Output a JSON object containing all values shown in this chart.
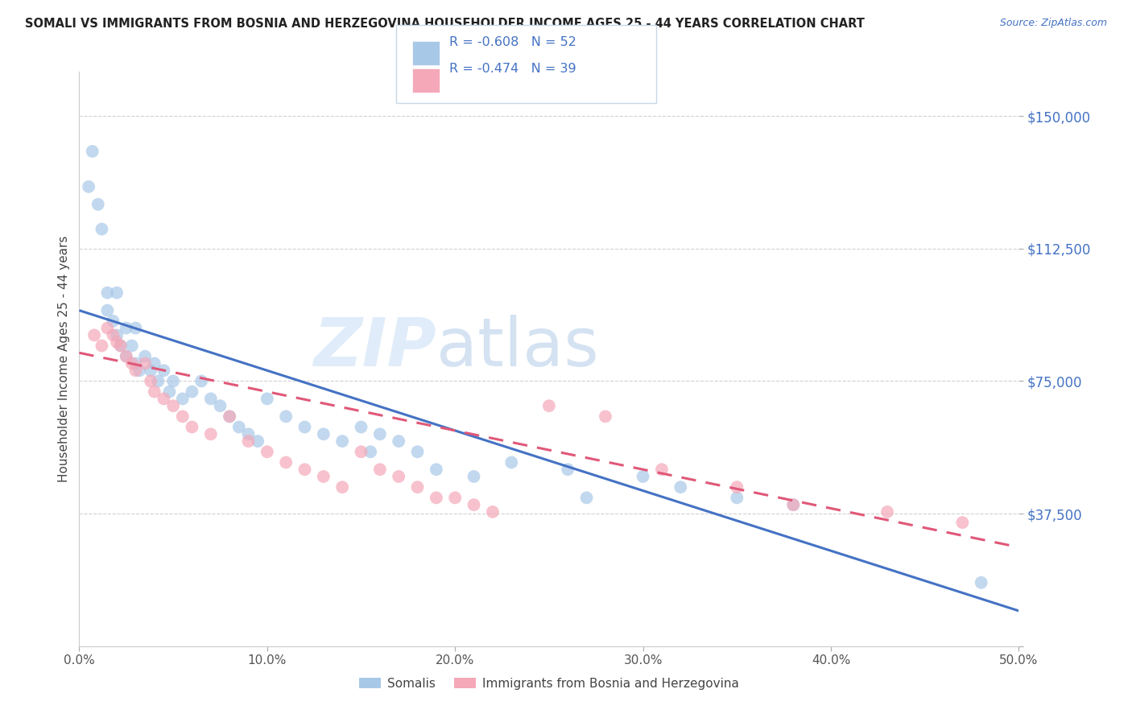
{
  "title": "SOMALI VS IMMIGRANTS FROM BOSNIA AND HERZEGOVINA HOUSEHOLDER INCOME AGES 25 - 44 YEARS CORRELATION CHART",
  "source": "Source: ZipAtlas.com",
  "ylabel": "Householder Income Ages 25 - 44 years",
  "xlabel_ticks": [
    "0.0%",
    "10.0%",
    "20.0%",
    "30.0%",
    "40.0%",
    "50.0%"
  ],
  "xlabel_vals": [
    0.0,
    0.1,
    0.2,
    0.3,
    0.4,
    0.5
  ],
  "ytick_vals": [
    0,
    37500,
    75000,
    112500,
    150000
  ],
  "ytick_labels": [
    "",
    "$37,500",
    "$75,000",
    "$112,500",
    "$150,000"
  ],
  "xlim": [
    0.0,
    0.5
  ],
  "ylim": [
    0,
    162500
  ],
  "r_somali": -0.608,
  "n_somali": 52,
  "r_bosnia": -0.474,
  "n_bosnia": 39,
  "color_somali": "#a8c8e8",
  "color_bosnia": "#f4a8b8",
  "color_somali_line": "#4472c4",
  "color_bosnia_line": "#e05878",
  "somali_line_y0": 95000,
  "somali_line_y1": 10000,
  "bosnia_line_y0": 83000,
  "bosnia_line_y1": 28000,
  "somali_x": [
    0.005,
    0.007,
    0.01,
    0.012,
    0.015,
    0.015,
    0.018,
    0.02,
    0.02,
    0.022,
    0.025,
    0.025,
    0.028,
    0.03,
    0.03,
    0.032,
    0.035,
    0.038,
    0.04,
    0.042,
    0.045,
    0.048,
    0.05,
    0.055,
    0.06,
    0.065,
    0.07,
    0.075,
    0.08,
    0.085,
    0.09,
    0.095,
    0.1,
    0.11,
    0.12,
    0.13,
    0.14,
    0.15,
    0.155,
    0.16,
    0.17,
    0.18,
    0.19,
    0.21,
    0.23,
    0.26,
    0.27,
    0.3,
    0.32,
    0.35,
    0.38,
    0.48
  ],
  "somali_y": [
    130000,
    140000,
    125000,
    118000,
    100000,
    95000,
    92000,
    100000,
    88000,
    85000,
    90000,
    82000,
    85000,
    90000,
    80000,
    78000,
    82000,
    78000,
    80000,
    75000,
    78000,
    72000,
    75000,
    70000,
    72000,
    75000,
    70000,
    68000,
    65000,
    62000,
    60000,
    58000,
    70000,
    65000,
    62000,
    60000,
    58000,
    62000,
    55000,
    60000,
    58000,
    55000,
    50000,
    48000,
    52000,
    50000,
    42000,
    48000,
    45000,
    42000,
    40000,
    18000
  ],
  "bosnia_x": [
    0.008,
    0.012,
    0.015,
    0.018,
    0.02,
    0.022,
    0.025,
    0.028,
    0.03,
    0.035,
    0.038,
    0.04,
    0.045,
    0.05,
    0.055,
    0.06,
    0.07,
    0.08,
    0.09,
    0.1,
    0.11,
    0.12,
    0.13,
    0.14,
    0.15,
    0.16,
    0.17,
    0.18,
    0.19,
    0.2,
    0.21,
    0.22,
    0.25,
    0.28,
    0.31,
    0.35,
    0.38,
    0.43,
    0.47
  ],
  "bosnia_y": [
    88000,
    85000,
    90000,
    88000,
    86000,
    85000,
    82000,
    80000,
    78000,
    80000,
    75000,
    72000,
    70000,
    68000,
    65000,
    62000,
    60000,
    65000,
    58000,
    55000,
    52000,
    50000,
    48000,
    45000,
    55000,
    50000,
    48000,
    45000,
    42000,
    42000,
    40000,
    38000,
    68000,
    65000,
    50000,
    45000,
    40000,
    38000,
    35000
  ]
}
